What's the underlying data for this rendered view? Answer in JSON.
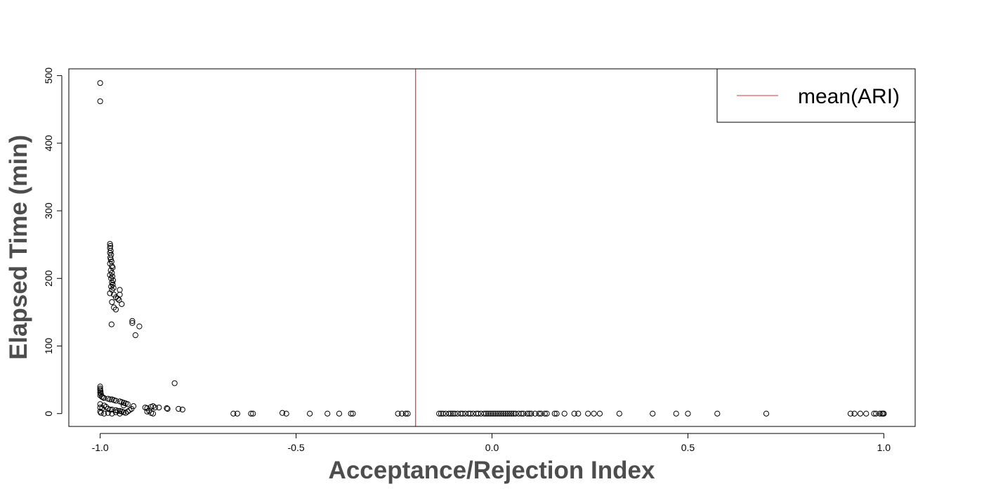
{
  "chart_data": {
    "type": "scatter",
    "title": "",
    "xlabel": "Acceptance/Rejection Index",
    "ylabel": "Elapsed Time (min)",
    "xlim": [
      -1.08,
      1.08
    ],
    "ylim": [
      -19,
      510
    ],
    "x_ticks": [
      -1.0,
      -0.5,
      0.0,
      0.5,
      1.0
    ],
    "x_tick_labels": [
      "-1.0",
      "-0.5",
      "0.0",
      "0.5",
      "1.0"
    ],
    "y_ticks": [
      0,
      100,
      200,
      300,
      400,
      500
    ],
    "y_tick_labels": [
      "0",
      "100",
      "200",
      "300",
      "400",
      "500"
    ],
    "grid": false,
    "legend": {
      "position": "top-right",
      "entries": [
        {
          "label": "mean(ARI)",
          "color": "#e0303a",
          "kind": "line"
        }
      ]
    },
    "reference_lines": [
      {
        "orientation": "vertical",
        "x": -0.195,
        "color": "#e0303a",
        "name": "mean(ARI)"
      }
    ],
    "series": [
      {
        "marker": "open-circle",
        "color": "#000000",
        "points": [
          [
            -1.0,
            489
          ],
          [
            -1.0,
            462
          ],
          [
            -0.975,
            251
          ],
          [
            -0.974,
            248
          ],
          [
            -0.975,
            245
          ],
          [
            -0.973,
            241
          ],
          [
            -0.975,
            238
          ],
          [
            -0.972,
            235
          ],
          [
            -0.974,
            231
          ],
          [
            -0.973,
            228
          ],
          [
            -0.971,
            225
          ],
          [
            -0.975,
            222
          ],
          [
            -0.97,
            218
          ],
          [
            -0.968,
            216
          ],
          [
            -0.973,
            212
          ],
          [
            -0.97,
            208
          ],
          [
            -0.975,
            205
          ],
          [
            -0.969,
            203
          ],
          [
            -0.972,
            200
          ],
          [
            -0.967,
            197
          ],
          [
            -0.97,
            194
          ],
          [
            -0.968,
            191
          ],
          [
            -0.972,
            188
          ],
          [
            -0.966,
            186
          ],
          [
            -0.97,
            183
          ],
          [
            -0.975,
            178
          ],
          [
            -0.965,
            176
          ],
          [
            -0.96,
            172
          ],
          [
            -0.955,
            170
          ],
          [
            -0.95,
            183
          ],
          [
            -0.95,
            176
          ],
          [
            -0.952,
            168
          ],
          [
            -0.945,
            162
          ],
          [
            -0.97,
            165
          ],
          [
            -0.965,
            157
          ],
          [
            -0.96,
            154
          ],
          [
            -0.971,
            132
          ],
          [
            -0.918,
            137
          ],
          [
            -0.918,
            134
          ],
          [
            -0.9,
            129
          ],
          [
            -0.91,
            116
          ],
          [
            -1.0,
            40
          ],
          [
            -1.0,
            37
          ],
          [
            -1.0,
            35
          ],
          [
            -0.999,
            33
          ],
          [
            -1.0,
            31
          ],
          [
            -0.998,
            29
          ],
          [
            -1.0,
            27
          ],
          [
            -0.996,
            25
          ],
          [
            -0.993,
            24
          ],
          [
            -0.99,
            23
          ],
          [
            -0.98,
            22
          ],
          [
            -0.975,
            21
          ],
          [
            -0.97,
            21
          ],
          [
            -0.965,
            20
          ],
          [
            -0.96,
            19
          ],
          [
            -0.95,
            18
          ],
          [
            -0.945,
            17
          ],
          [
            -0.94,
            16
          ],
          [
            -0.935,
            15
          ],
          [
            -0.93,
            14
          ],
          [
            -0.94,
            12
          ],
          [
            -1.0,
            14
          ],
          [
            -0.99,
            12
          ],
          [
            -0.985,
            10
          ],
          [
            -1.0,
            9
          ],
          [
            -0.995,
            8
          ],
          [
            -0.98,
            7
          ],
          [
            -0.975,
            6
          ],
          [
            -0.97,
            6
          ],
          [
            -0.96,
            5
          ],
          [
            -0.955,
            4
          ],
          [
            -0.95,
            4
          ],
          [
            -0.945,
            3
          ],
          [
            -0.94,
            2
          ],
          [
            -0.935,
            1
          ],
          [
            -1.0,
            3
          ],
          [
            -0.998,
            1
          ],
          [
            -0.99,
            0
          ],
          [
            -0.98,
            1
          ],
          [
            -0.97,
            0
          ],
          [
            -0.96,
            2
          ],
          [
            -0.95,
            0
          ],
          [
            -0.915,
            11
          ],
          [
            -0.92,
            7
          ],
          [
            -0.925,
            5
          ],
          [
            -0.93,
            3
          ],
          [
            -0.885,
            9
          ],
          [
            -0.88,
            8
          ],
          [
            -0.87,
            10
          ],
          [
            -0.865,
            11
          ],
          [
            -0.86,
            9
          ],
          [
            -0.875,
            4
          ],
          [
            -0.88,
            3
          ],
          [
            -0.87,
            1
          ],
          [
            -0.865,
            0
          ],
          [
            -0.85,
            9
          ],
          [
            -0.83,
            8
          ],
          [
            -0.828,
            7
          ],
          [
            -0.81,
            45
          ],
          [
            -0.8,
            7
          ],
          [
            -0.79,
            6
          ],
          [
            -0.66,
            0
          ],
          [
            -0.65,
            0
          ],
          [
            -0.615,
            0
          ],
          [
            -0.61,
            0
          ],
          [
            -0.535,
            1
          ],
          [
            -0.525,
            0
          ],
          [
            -0.465,
            0
          ],
          [
            -0.42,
            0
          ],
          [
            -0.39,
            0
          ],
          [
            -0.36,
            0
          ],
          [
            -0.355,
            0
          ],
          [
            -0.24,
            0
          ],
          [
            -0.23,
            0
          ],
          [
            -0.22,
            0
          ],
          [
            -0.215,
            0
          ],
          [
            -0.135,
            0
          ],
          [
            -0.13,
            0
          ],
          [
            -0.125,
            0
          ],
          [
            -0.118,
            0
          ],
          [
            -0.11,
            0
          ],
          [
            -0.105,
            0
          ],
          [
            -0.1,
            0
          ],
          [
            -0.095,
            0
          ],
          [
            -0.088,
            0
          ],
          [
            -0.08,
            0
          ],
          [
            -0.075,
            0
          ],
          [
            -0.068,
            0
          ],
          [
            -0.06,
            0
          ],
          [
            -0.055,
            0
          ],
          [
            -0.048,
            0
          ],
          [
            -0.04,
            0
          ],
          [
            -0.035,
            0
          ],
          [
            -0.028,
            0
          ],
          [
            -0.02,
            0
          ],
          [
            -0.015,
            0
          ],
          [
            -0.01,
            0
          ],
          [
            -0.005,
            0
          ],
          [
            0.0,
            0
          ],
          [
            0.005,
            0
          ],
          [
            0.01,
            0
          ],
          [
            0.015,
            0
          ],
          [
            0.02,
            0
          ],
          [
            0.025,
            0
          ],
          [
            0.03,
            0
          ],
          [
            0.035,
            0
          ],
          [
            0.04,
            0
          ],
          [
            0.045,
            0
          ],
          [
            0.05,
            0
          ],
          [
            0.055,
            0
          ],
          [
            0.06,
            0
          ],
          [
            0.068,
            0
          ],
          [
            0.075,
            0
          ],
          [
            0.08,
            0
          ],
          [
            0.09,
            0
          ],
          [
            0.095,
            0
          ],
          [
            0.1,
            0
          ],
          [
            0.11,
            0
          ],
          [
            0.12,
            0
          ],
          [
            0.125,
            0
          ],
          [
            0.135,
            0
          ],
          [
            0.14,
            0
          ],
          [
            0.16,
            0
          ],
          [
            0.165,
            0
          ],
          [
            0.185,
            0
          ],
          [
            0.21,
            0
          ],
          [
            0.22,
            0
          ],
          [
            0.245,
            0
          ],
          [
            0.26,
            0
          ],
          [
            0.275,
            0
          ],
          [
            0.325,
            0
          ],
          [
            0.41,
            0
          ],
          [
            0.47,
            0
          ],
          [
            0.5,
            0
          ],
          [
            0.575,
            0
          ],
          [
            0.7,
            0
          ],
          [
            0.915,
            0
          ],
          [
            0.925,
            0
          ],
          [
            0.94,
            0
          ],
          [
            0.955,
            0
          ],
          [
            0.975,
            0
          ],
          [
            0.98,
            0
          ],
          [
            0.99,
            0
          ],
          [
            0.995,
            0
          ],
          [
            0.998,
            0
          ],
          [
            1.0,
            0
          ]
        ]
      }
    ]
  }
}
